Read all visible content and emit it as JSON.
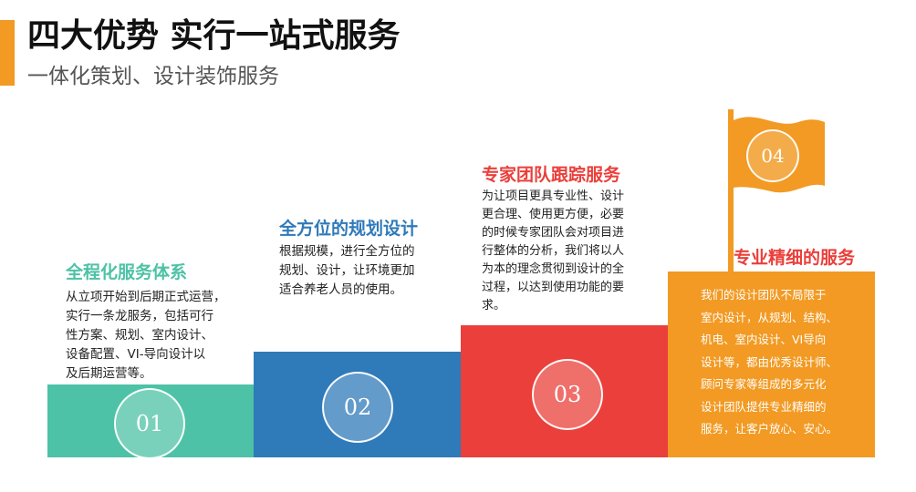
{
  "header": {
    "title": "四大优势 实行一站式服务",
    "subtitle": "一体化策划、设计装饰服务"
  },
  "colors": {
    "accent_orange": "#f29a23",
    "step1_teal": "#4dc2a6",
    "step2_blue": "#2f7ab9",
    "step3_red": "#ea3f3a",
    "step4_orange": "#f29a23"
  },
  "steps": [
    {
      "number": "01",
      "title": "全程化服务体系",
      "desc_lines": [
        "从立项开始到后期正式运营，",
        "实行一条龙服务，包括可行",
        "性方案、规划、室内设计、",
        "设备配置、VI-导向设计以",
        "及后期运营等。"
      ]
    },
    {
      "number": "02",
      "title": "全方位的规划设计",
      "desc_lines": [
        "根据规模，进行全方位的",
        "规划、设计，让环境更加",
        "适合养老人员的使用。"
      ]
    },
    {
      "number": "03",
      "title": "专家团队跟踪服务",
      "desc_lines": [
        "为让项目更具专业性、设计",
        "更合理、使用更方便，必要",
        "的时候专家团队会对项目进",
        "行整体的分析，我们将以人",
        "为本的理念贯彻到设计的全",
        "过程，以达到使用功能的要",
        "求。"
      ]
    },
    {
      "number": "04",
      "title": "专业精细的服务",
      "desc_lines": [
        "我们的设计团队不局限于",
        "室内设计，从规划、结构、",
        "机电、室内设计、VI导向",
        "设计等，都由优秀设计师、",
        "顾问专家等组成的多元化",
        "设计团队提供专业精细的",
        "服务，让客户放心、安心。"
      ]
    }
  ]
}
